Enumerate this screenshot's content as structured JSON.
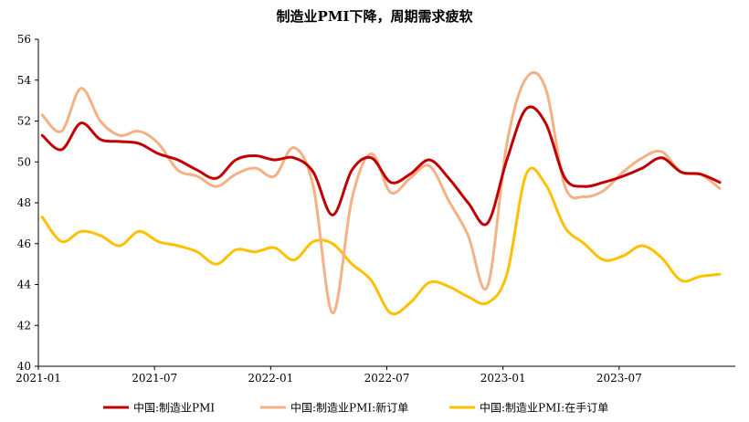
{
  "chart_data": {
    "type": "line",
    "title": "制造业PMI下降，周期需求疲软",
    "xlabel": "",
    "ylabel": "",
    "ylim": [
      40,
      56
    ],
    "yticks": [
      40,
      42,
      44,
      46,
      48,
      50,
      52,
      54,
      56
    ],
    "x_tick_labels": [
      "2021-01",
      "2021-07",
      "2022-01",
      "2022-07",
      "2023-01",
      "2023-07"
    ],
    "x": [
      "2021-01",
      "2021-02",
      "2021-03",
      "2021-04",
      "2021-05",
      "2021-06",
      "2021-07",
      "2021-08",
      "2021-09",
      "2021-10",
      "2021-11",
      "2021-12",
      "2022-01",
      "2022-02",
      "2022-03",
      "2022-04",
      "2022-05",
      "2022-06",
      "2022-07",
      "2022-08",
      "2022-09",
      "2022-10",
      "2022-11",
      "2022-12",
      "2023-01",
      "2023-02",
      "2023-03",
      "2023-04",
      "2023-05",
      "2023-06",
      "2023-07",
      "2023-08",
      "2023-09",
      "2023-10",
      "2023-11",
      "2023-12"
    ],
    "legend_position": "bottom",
    "grid": false,
    "series": [
      {
        "name": "中国:制造业PMI",
        "color": "#c00000",
        "values": [
          51.3,
          50.6,
          51.9,
          51.1,
          51.0,
          50.9,
          50.4,
          50.1,
          49.6,
          49.2,
          50.1,
          50.3,
          50.1,
          50.2,
          49.5,
          47.4,
          49.6,
          50.2,
          49.0,
          49.4,
          50.1,
          49.2,
          48.0,
          47.0,
          50.1,
          52.6,
          51.9,
          49.2,
          48.8,
          49.0,
          49.3,
          49.7,
          50.2,
          49.5,
          49.4,
          49.0
        ]
      },
      {
        "name": "中国:制造业PMI:新订单",
        "color": "#f4b183",
        "values": [
          52.3,
          51.5,
          53.6,
          52.0,
          51.3,
          51.5,
          50.9,
          49.6,
          49.3,
          48.8,
          49.4,
          49.7,
          49.3,
          50.7,
          48.8,
          42.6,
          48.2,
          50.4,
          48.5,
          49.2,
          49.8,
          48.1,
          46.4,
          43.9,
          50.9,
          54.1,
          53.6,
          48.8,
          48.3,
          48.6,
          49.5,
          50.2,
          50.5,
          49.5,
          49.4,
          48.7
        ]
      },
      {
        "name": "中国:制造业PMI:在手订单",
        "color": "#ffc000",
        "values": [
          47.3,
          46.1,
          46.6,
          46.4,
          45.9,
          46.6,
          46.1,
          45.9,
          45.6,
          45.0,
          45.7,
          45.6,
          45.8,
          45.2,
          46.1,
          46.0,
          45.0,
          44.2,
          42.6,
          43.1,
          44.1,
          43.9,
          43.4,
          43.1,
          44.5,
          49.4,
          48.9,
          46.8,
          46.0,
          45.2,
          45.4,
          45.9,
          45.3,
          44.2,
          44.4,
          44.5
        ]
      }
    ]
  }
}
